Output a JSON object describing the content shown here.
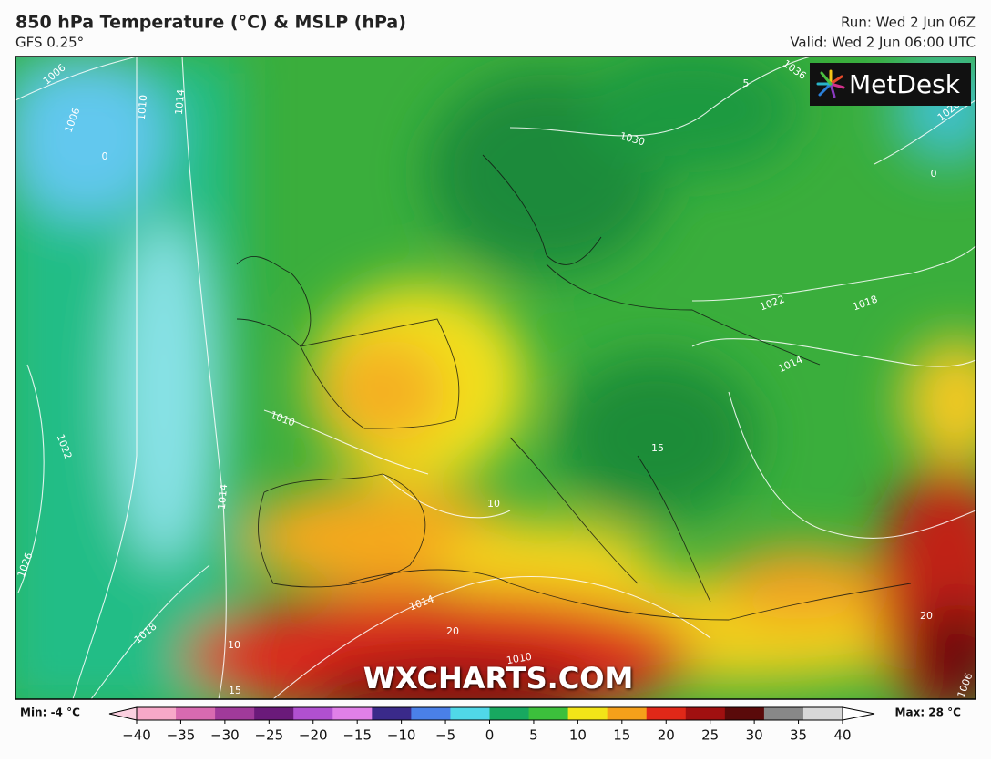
{
  "header": {
    "title": "850 hPa Temperature (°C) & MSLP (hPa)",
    "subtitle": "GFS 0.25°",
    "run": "Run: Wed 2 Jun 06Z",
    "valid": "Valid: Wed 2 Jun 06:00 UTC"
  },
  "logo": "MetDesk",
  "watermark": "WXCHARTS.COM",
  "map_labels": [
    1006,
    1010,
    1014,
    1006,
    0,
    1022,
    1026,
    1018,
    1014,
    1010,
    10,
    15,
    1030,
    1036,
    5,
    1026,
    0,
    1022,
    1018,
    1014,
    1014,
    20,
    1010,
    10,
    20,
    1006,
    15
  ],
  "colorbar": {
    "min_label": "Min: -4 °C",
    "max_label": "Max: 28 °C",
    "ticks": [
      {
        "value": -40,
        "label": "−40"
      },
      {
        "value": -35,
        "label": "−35"
      },
      {
        "value": -30,
        "label": "−30"
      },
      {
        "value": -25,
        "label": "−25"
      },
      {
        "value": -20,
        "label": "−20"
      },
      {
        "value": -15,
        "label": "−15"
      },
      {
        "value": -10,
        "label": "−10"
      },
      {
        "value": -5,
        "label": "−5"
      },
      0,
      5,
      10,
      15,
      20,
      25,
      30,
      35,
      40
    ],
    "colors": [
      "#f7a8c8",
      "#d86ab0",
      "#a03a9a",
      "#6a1a7a",
      "#b050d0",
      "#e080e8",
      "#3a2a8a",
      "#4a80e8",
      "#50d8e8",
      "#18a860",
      "#3cc03c",
      "#f2e418",
      "#f5a01a",
      "#e02818",
      "#a01010",
      "#5a0a0a",
      "#888888",
      "#d8d8d8"
    ]
  }
}
